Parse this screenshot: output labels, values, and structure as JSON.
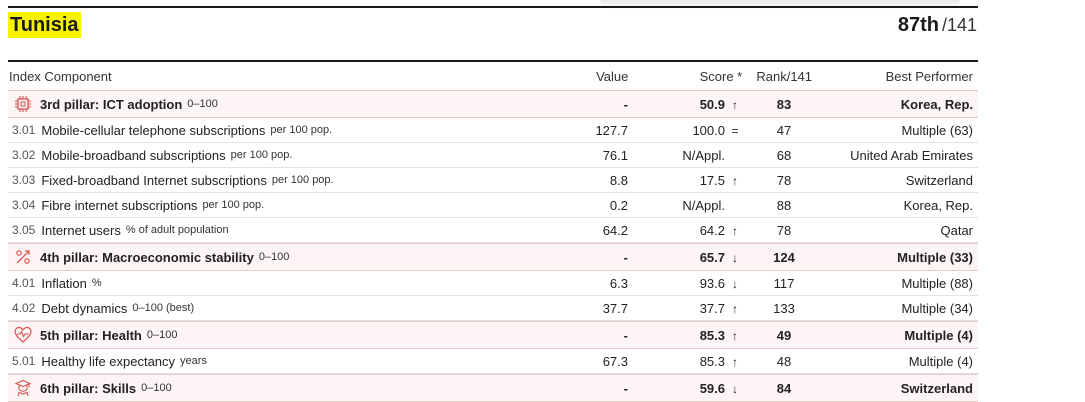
{
  "header": {
    "country": "Tunisia",
    "rank": "87th",
    "total": "/141"
  },
  "columns": {
    "component": "Index Component",
    "value": "Value",
    "score": "Score *",
    "rank": "Rank/141",
    "best": "Best Performer"
  },
  "rows": [
    {
      "type": "pillar",
      "icon": "chip-icon",
      "name": "3rd pillar: ICT adoption",
      "unit": "0–100",
      "value": "-",
      "score": "50.9",
      "trend": "↑",
      "rank": "83",
      "best": "Korea, Rep."
    },
    {
      "type": "item",
      "code": "3.01",
      "name": "Mobile-cellular telephone subscriptions",
      "unit": "per 100 pop.",
      "value": "127.7",
      "score": "100.0",
      "trend": "=",
      "rank": "47",
      "best": "Multiple (63)"
    },
    {
      "type": "item",
      "code": "3.02",
      "name": "Mobile-broadband subscriptions",
      "unit": "per 100 pop.",
      "value": "76.1",
      "score": "N/Appl.",
      "trend": "",
      "rank": "68",
      "best": "United Arab Emirates"
    },
    {
      "type": "item",
      "code": "3.03",
      "name": "Fixed-broadband Internet subscriptions",
      "unit": "per 100 pop.",
      "value": "8.8",
      "score": "17.5",
      "trend": "↑",
      "rank": "78",
      "best": "Switzerland"
    },
    {
      "type": "item",
      "code": "3.04",
      "name": "Fibre internet subscriptions",
      "unit": "per 100 pop.",
      "value": "0.2",
      "score": "N/Appl.",
      "trend": "",
      "rank": "88",
      "best": "Korea, Rep."
    },
    {
      "type": "item",
      "code": "3.05",
      "name": "Internet users",
      "unit": "% of adult population",
      "value": "64.2",
      "score": "64.2",
      "trend": "↑",
      "rank": "78",
      "best": "Qatar"
    },
    {
      "type": "pillar",
      "icon": "percent-icon",
      "name": "4th pillar: Macroeconomic stability",
      "unit": "0–100",
      "value": "-",
      "score": "65.7",
      "trend": "↓",
      "rank": "124",
      "best": "Multiple (33)"
    },
    {
      "type": "item",
      "code": "4.01",
      "name": "Inflation",
      "unit": "%",
      "value": "6.3",
      "score": "93.6",
      "trend": "↓",
      "rank": "117",
      "best": "Multiple (88)"
    },
    {
      "type": "item",
      "code": "4.02",
      "name": "Debt dynamics",
      "unit": "0–100 (best)",
      "value": "37.7",
      "score": "37.7",
      "trend": "↑",
      "rank": "133",
      "best": "Multiple (34)"
    },
    {
      "type": "pillar",
      "icon": "heart-pulse-icon",
      "name": "5th pillar: Health",
      "unit": "0–100",
      "value": "-",
      "score": "85.3",
      "trend": "↑",
      "rank": "49",
      "best": "Multiple (4)"
    },
    {
      "type": "item",
      "code": "5.01",
      "name": "Healthy life expectancy",
      "unit": "years",
      "value": "67.3",
      "score": "85.3",
      "trend": "↑",
      "rank": "48",
      "best": "Multiple (4)"
    },
    {
      "type": "pillar",
      "icon": "graduate-icon",
      "name": "6th pillar: Skills",
      "unit": "0–100",
      "value": "-",
      "score": "59.6",
      "trend": "↓",
      "rank": "84",
      "best": "Switzerland"
    }
  ],
  "colors": {
    "highlight": "#f7f200",
    "pillar_icon": "#d9534f",
    "pillar_bg": "#fdf5f5"
  }
}
